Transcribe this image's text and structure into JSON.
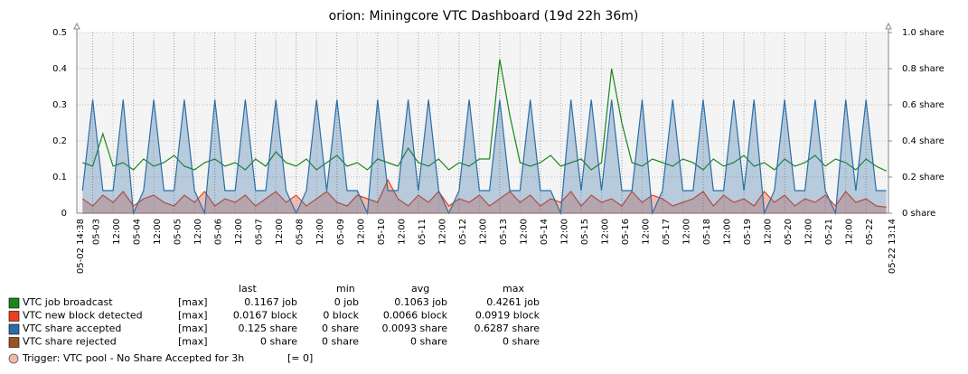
{
  "chart_data": {
    "type": "line",
    "title": "orion: Miningcore VTC Dashboard (19d 22h 36m)",
    "xlim": [
      "05-02 14:38",
      "05-22 13:14"
    ],
    "ylim": [
      0,
      0.5
    ],
    "yticks": [
      0,
      0.1,
      0.2,
      0.3,
      0.4,
      0.5
    ],
    "y2lim": [
      0,
      1
    ],
    "y2ticks": [
      {
        "value": 0,
        "label": "0 share"
      },
      {
        "value": 0.2,
        "label": "0.2 share"
      },
      {
        "value": 0.4,
        "label": "0.4 share"
      },
      {
        "value": 0.6,
        "label": "0.6 share"
      },
      {
        "value": 0.8,
        "label": "0.8 share"
      },
      {
        "value": 1,
        "label": "1.0 share"
      }
    ],
    "grid": true,
    "xticks": [
      {
        "value": "05-03 00:00",
        "label": "05-03"
      },
      {
        "value": "05-03 12:00",
        "label": "12:00"
      },
      {
        "value": "05-04 00:00",
        "label": "05-04"
      },
      {
        "value": "05-04 12:00",
        "label": "12:00"
      },
      {
        "value": "05-05 00:00",
        "label": "05-05"
      },
      {
        "value": "05-05 12:00",
        "label": "12:00"
      },
      {
        "value": "05-06 00:00",
        "label": "05-06"
      },
      {
        "value": "05-06 12:00",
        "label": "12:00"
      },
      {
        "value": "05-07 00:00",
        "label": "05-07"
      },
      {
        "value": "05-07 12:00",
        "label": "12:00"
      },
      {
        "value": "05-08 00:00",
        "label": "05-08"
      },
      {
        "value": "05-08 12:00",
        "label": "12:00"
      },
      {
        "value": "05-09 00:00",
        "label": "05-09"
      },
      {
        "value": "05-09 12:00",
        "label": "12:00"
      },
      {
        "value": "05-10 00:00",
        "label": "05-10"
      },
      {
        "value": "05-10 12:00",
        "label": "12:00"
      },
      {
        "value": "05-11 00:00",
        "label": "05-11"
      },
      {
        "value": "05-11 12:00",
        "label": "12:00"
      },
      {
        "value": "05-12 00:00",
        "label": "05-12"
      },
      {
        "value": "05-12 12:00",
        "label": "12:00"
      },
      {
        "value": "05-13 00:00",
        "label": "05-13"
      },
      {
        "value": "05-13 12:00",
        "label": "12:00"
      },
      {
        "value": "05-14 00:00",
        "label": "05-14"
      },
      {
        "value": "05-14 12:00",
        "label": "12:00"
      },
      {
        "value": "05-15 00:00",
        "label": "05-15"
      },
      {
        "value": "05-15 12:00",
        "label": "12:00"
      },
      {
        "value": "05-16 00:00",
        "label": "05-16"
      },
      {
        "value": "05-16 12:00",
        "label": "12:00"
      },
      {
        "value": "05-17 00:00",
        "label": "05-17"
      },
      {
        "value": "05-17 12:00",
        "label": "12:00"
      },
      {
        "value": "05-18 00:00",
        "label": "05-18"
      },
      {
        "value": "05-18 12:00",
        "label": "12:00"
      },
      {
        "value": "05-19 00:00",
        "label": "05-19"
      },
      {
        "value": "05-19 12:00",
        "label": "12:00"
      },
      {
        "value": "05-20 00:00",
        "label": "05-20"
      },
      {
        "value": "05-20 12:00",
        "label": "12:00"
      },
      {
        "value": "05-21 00:00",
        "label": "05-21"
      },
      {
        "value": "05-21 12:00",
        "label": "12:00"
      },
      {
        "value": "05-22 00:00",
        "label": "05-22"
      }
    ],
    "x": [
      "05-02 18:00",
      "05-03 00:00",
      "05-03 06:00",
      "05-03 12:00",
      "05-03 18:00",
      "05-04 00:00",
      "05-04 06:00",
      "05-04 12:00",
      "05-04 18:00",
      "05-05 00:00",
      "05-05 06:00",
      "05-05 12:00",
      "05-05 18:00",
      "05-06 00:00",
      "05-06 06:00",
      "05-06 12:00",
      "05-06 18:00",
      "05-07 00:00",
      "05-07 06:00",
      "05-07 12:00",
      "05-07 18:00",
      "05-08 00:00",
      "05-08 06:00",
      "05-08 12:00",
      "05-08 18:00",
      "05-09 00:00",
      "05-09 06:00",
      "05-09 12:00",
      "05-09 18:00",
      "05-10 00:00",
      "05-10 06:00",
      "05-10 12:00",
      "05-10 18:00",
      "05-11 00:00",
      "05-11 06:00",
      "05-11 12:00",
      "05-11 18:00",
      "05-12 00:00",
      "05-12 06:00",
      "05-12 12:00",
      "05-12 18:00",
      "05-13 00:00",
      "05-13 06:00",
      "05-13 12:00",
      "05-13 18:00",
      "05-14 00:00",
      "05-14 06:00",
      "05-14 12:00",
      "05-14 18:00",
      "05-15 00:00",
      "05-15 06:00",
      "05-15 12:00",
      "05-15 18:00",
      "05-16 00:00",
      "05-16 06:00",
      "05-16 12:00",
      "05-16 18:00",
      "05-17 00:00",
      "05-17 06:00",
      "05-17 12:00",
      "05-17 18:00",
      "05-18 00:00",
      "05-18 06:00",
      "05-18 12:00",
      "05-18 18:00",
      "05-19 00:00",
      "05-19 06:00",
      "05-19 12:00",
      "05-19 18:00",
      "05-20 00:00",
      "05-20 06:00",
      "05-20 12:00",
      "05-20 18:00",
      "05-21 00:00",
      "05-21 06:00",
      "05-21 12:00",
      "05-21 18:00",
      "05-22 00:00",
      "05-22 06:00",
      "05-22 12:00"
    ],
    "stats_headers": [
      "last",
      "min",
      "avg",
      "max"
    ],
    "series": [
      {
        "name": "VTC job broadcast",
        "color": "#1a861a",
        "style": "line",
        "axis": "y",
        "function": "[max]",
        "stats": [
          "0.1167 job",
          "0 job",
          "0.1063 job",
          "0.4261 job"
        ],
        "values": [
          0.14,
          0.13,
          0.22,
          0.13,
          0.14,
          0.12,
          0.15,
          0.13,
          0.14,
          0.16,
          0.13,
          0.12,
          0.14,
          0.15,
          0.13,
          0.14,
          0.12,
          0.15,
          0.13,
          0.17,
          0.14,
          0.13,
          0.15,
          0.12,
          0.14,
          0.16,
          0.13,
          0.14,
          0.12,
          0.15,
          0.14,
          0.13,
          0.18,
          0.14,
          0.13,
          0.15,
          0.12,
          0.14,
          0.13,
          0.15,
          0.15,
          0.4261,
          0.27,
          0.14,
          0.13,
          0.14,
          0.16,
          0.13,
          0.14,
          0.15,
          0.12,
          0.14,
          0.4,
          0.25,
          0.14,
          0.13,
          0.15,
          0.14,
          0.13,
          0.15,
          0.14,
          0.12,
          0.15,
          0.13,
          0.14,
          0.16,
          0.13,
          0.14,
          0.12,
          0.15,
          0.13,
          0.14,
          0.16,
          0.13,
          0.15,
          0.14,
          0.12,
          0.15,
          0.13,
          0.1167
        ]
      },
      {
        "name": "VTC new block detected",
        "color": "#e8401c",
        "style": "area",
        "axis": "y",
        "function": "[max]",
        "stats": [
          "0.0167 block",
          "0 block",
          "0.0066 block",
          "0.0919 block"
        ],
        "values": [
          0.04,
          0.02,
          0.05,
          0.03,
          0.06,
          0.02,
          0.04,
          0.05,
          0.03,
          0.02,
          0.05,
          0.03,
          0.06,
          0.02,
          0.04,
          0.03,
          0.05,
          0.02,
          0.04,
          0.06,
          0.03,
          0.05,
          0.02,
          0.04,
          0.06,
          0.03,
          0.02,
          0.05,
          0.04,
          0.03,
          0.0919,
          0.04,
          0.02,
          0.05,
          0.03,
          0.06,
          0.02,
          0.04,
          0.03,
          0.05,
          0.02,
          0.04,
          0.06,
          0.03,
          0.05,
          0.02,
          0.04,
          0.03,
          0.06,
          0.02,
          0.05,
          0.03,
          0.04,
          0.02,
          0.06,
          0.03,
          0.05,
          0.04,
          0.02,
          0.03,
          0.04,
          0.06,
          0.02,
          0.05,
          0.03,
          0.04,
          0.02,
          0.06,
          0.03,
          0.05,
          0.02,
          0.04,
          0.03,
          0.05,
          0.02,
          0.06,
          0.03,
          0.04,
          0.02,
          0.0167
        ]
      },
      {
        "name": "VTC share accepted",
        "color": "#2a6ea6",
        "style": "area",
        "axis": "y2",
        "function": "[max]",
        "stats": [
          "0.125 share",
          "0 share",
          "0.0093 share",
          "0.6287 share"
        ],
        "values": [
          0.125,
          0.6287,
          0.125,
          0.125,
          0.6287,
          0,
          0.125,
          0.6287,
          0.125,
          0.125,
          0.6287,
          0.125,
          0,
          0.6287,
          0.125,
          0.125,
          0.6287,
          0.125,
          0.125,
          0.6287,
          0.125,
          0,
          0.125,
          0.6287,
          0.125,
          0.6287,
          0.125,
          0.125,
          0,
          0.6287,
          0.125,
          0.125,
          0.6287,
          0.125,
          0.6287,
          0.125,
          0,
          0.125,
          0.6287,
          0.125,
          0.125,
          0.6287,
          0.125,
          0.125,
          0.6287,
          0.125,
          0.125,
          0,
          0.6287,
          0.125,
          0.6287,
          0.125,
          0.6287,
          0.125,
          0.125,
          0.6287,
          0,
          0.125,
          0.6287,
          0.125,
          0.125,
          0.6287,
          0.125,
          0.125,
          0.6287,
          0.125,
          0.6287,
          0,
          0.125,
          0.6287,
          0.125,
          0.125,
          0.6287,
          0.125,
          0,
          0.6287,
          0.125,
          0.6287,
          0.125,
          0.125
        ]
      },
      {
        "name": "VTC share rejected",
        "color": "#a0521e",
        "style": "line",
        "axis": "y2",
        "function": "[max]",
        "stats": [
          "0 share",
          "0 share",
          "0 share",
          "0 share"
        ],
        "values": [
          0,
          0,
          0,
          0,
          0,
          0,
          0,
          0,
          0,
          0,
          0,
          0,
          0,
          0,
          0,
          0,
          0,
          0,
          0,
          0,
          0,
          0,
          0,
          0,
          0,
          0,
          0,
          0,
          0,
          0,
          0,
          0,
          0,
          0,
          0,
          0,
          0,
          0,
          0,
          0,
          0,
          0,
          0,
          0,
          0,
          0,
          0,
          0,
          0,
          0,
          0,
          0,
          0,
          0,
          0,
          0,
          0,
          0,
          0,
          0,
          0,
          0,
          0,
          0,
          0,
          0,
          0,
          0,
          0,
          0,
          0,
          0,
          0,
          0,
          0,
          0,
          0,
          0,
          0,
          0
        ]
      }
    ],
    "trigger": {
      "label": "Trigger: VTC pool - No Share Accepted for 3h",
      "condition": "[= 0]",
      "color": "#f3b9a8"
    }
  }
}
